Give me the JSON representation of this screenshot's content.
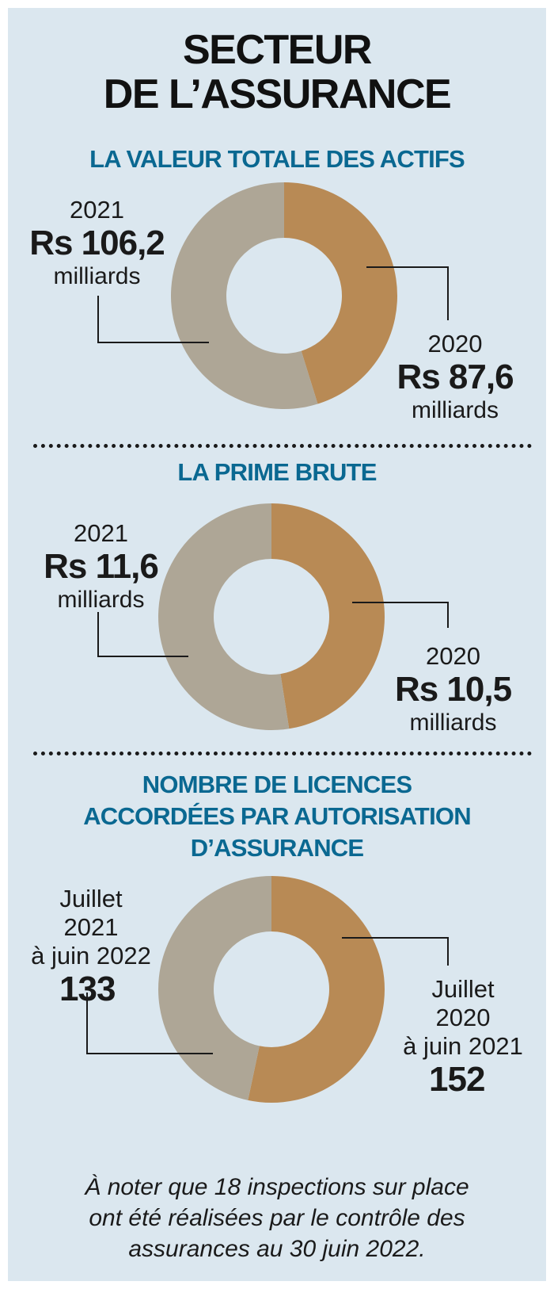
{
  "title_line1": "SECTEUR",
  "title_line2": "DE L’ASSURANCE",
  "colors": {
    "previous_year": "#b88a55",
    "current_year": "#aea696",
    "panel": "#dbe7ef",
    "section_title": "#0a6891"
  },
  "chart_data": [
    {
      "type": "pie",
      "title": "LA VALEUR TOTALE DES ACTIFS",
      "unit": "milliards",
      "slices": [
        {
          "label": "2020",
          "value": 87.6,
          "display": "Rs 87,6",
          "color": "#b88a55"
        },
        {
          "label": "2021",
          "value": 106.2,
          "display": "Rs 106,2",
          "color": "#aea696"
        }
      ]
    },
    {
      "type": "pie",
      "title": "LA PRIME BRUTE",
      "unit": "milliards",
      "slices": [
        {
          "label": "2020",
          "value": 10.5,
          "display": "Rs 10,5",
          "color": "#b88a55"
        },
        {
          "label": "2021",
          "value": 11.6,
          "display": "Rs 11,6",
          "color": "#aea696"
        }
      ]
    },
    {
      "type": "pie",
      "title_lines": [
        "NOMBRE DE LICENCES",
        "ACCORDÉES PAR AUTORISATION",
        "D’ASSURANCE"
      ],
      "slices": [
        {
          "label_lines": [
            "Juillet",
            "2020",
            "à juin 2021"
          ],
          "value": 152,
          "display": "152",
          "color": "#b88a55"
        },
        {
          "label_lines": [
            "Juillet",
            "2021",
            "à juin 2022"
          ],
          "value": 133,
          "display": "133",
          "color": "#aea696"
        }
      ]
    }
  ],
  "note_lines": [
    "À noter que 18 inspections sur place",
    "ont été réalisées par le contrôle des",
    "assurances au 30 juin 2022."
  ]
}
